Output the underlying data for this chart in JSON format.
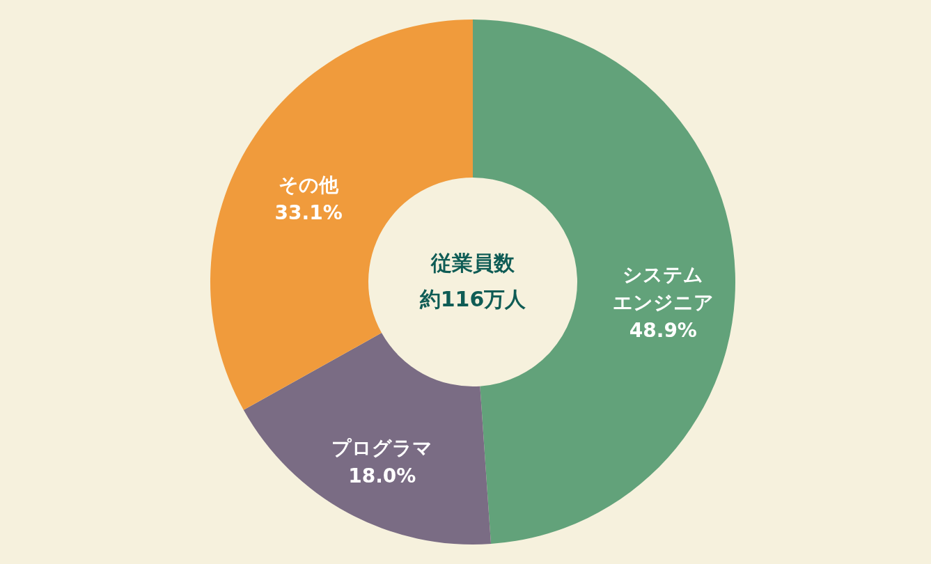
{
  "chart_data": {
    "type": "donut",
    "categories": [
      "システムエンジニア",
      "プログラマ",
      "その他"
    ],
    "values": [
      48.9,
      18.0,
      33.1
    ],
    "value_labels": [
      "48.9%",
      "18.0%",
      "33.1%"
    ],
    "colors": [
      "#62a27a",
      "#7a6c84",
      "#f09b3c"
    ],
    "annotations": [
      "従業員数",
      "約116万人"
    ]
  }
}
